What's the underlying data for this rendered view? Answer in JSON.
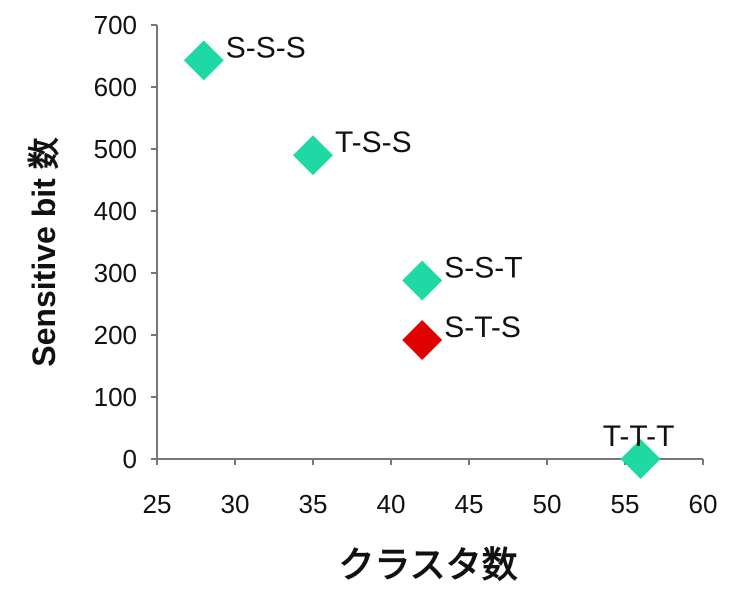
{
  "chart_data": {
    "type": "scatter",
    "title": "",
    "xlabel": "クラスタ数",
    "ylabel": "Sensitive bit 数",
    "xlim": [
      25,
      60
    ],
    "ylim": [
      0,
      700
    ],
    "x_ticks": [
      25,
      30,
      35,
      40,
      45,
      50,
      55,
      60
    ],
    "y_ticks": [
      0,
      100,
      200,
      300,
      400,
      500,
      600,
      700
    ],
    "grid": false,
    "legend": "none",
    "marker": "diamond",
    "colors": {
      "default": "#1fd9a5",
      "highlight": "#e00000",
      "axis": "#777777"
    },
    "points": [
      {
        "label": "S-S-S",
        "x": 28,
        "y": 643,
        "highlight": false
      },
      {
        "label": "T-S-S",
        "x": 35,
        "y": 490,
        "highlight": false
      },
      {
        "label": "S-S-T",
        "x": 42,
        "y": 288,
        "highlight": false
      },
      {
        "label": "S-T-S",
        "x": 42,
        "y": 192,
        "highlight": true
      },
      {
        "label": "T-T-T",
        "x": 56,
        "y": 0,
        "highlight": false
      }
    ]
  }
}
